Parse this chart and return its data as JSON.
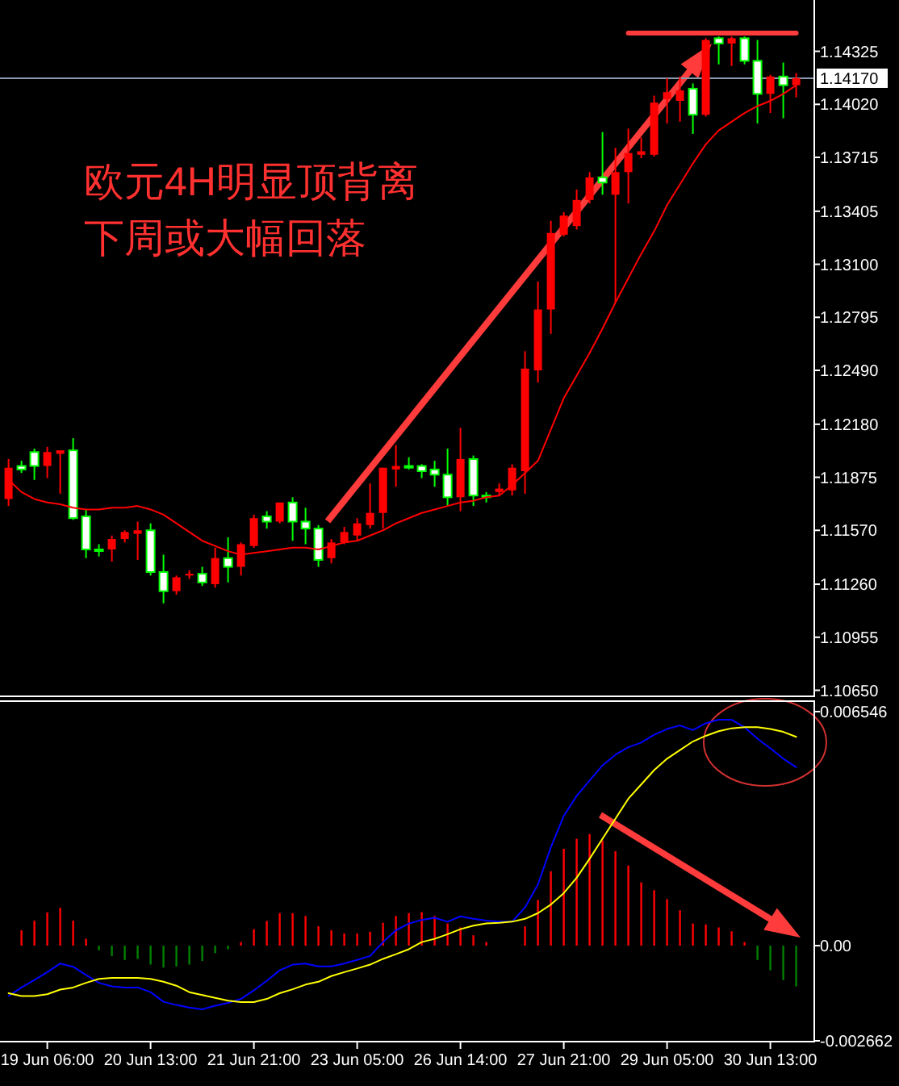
{
  "chart_data": [
    {
      "type": "candlestick",
      "tick_labels": "y",
      "categories": [
        null,
        null,
        null,
        null,
        null,
        null,
        null,
        null,
        null,
        null,
        null,
        null,
        null,
        null,
        null,
        null,
        null,
        null,
        null,
        null,
        null,
        null,
        null,
        null,
        null,
        null,
        null,
        null,
        null,
        null,
        null,
        null,
        null,
        null,
        null,
        null,
        null,
        null,
        null,
        null,
        null,
        null,
        null,
        null,
        null,
        null,
        null,
        null,
        null,
        null,
        null,
        null,
        null,
        null,
        null,
        null,
        null,
        null,
        null,
        null,
        null,
        null
      ],
      "ohlc": [
        [
          1.1175,
          1.1198,
          1.1171,
          1.1193
        ],
        [
          1.1194,
          1.1197,
          1.119,
          1.1192
        ],
        [
          1.1202,
          1.1204,
          1.1186,
          1.1194
        ],
        [
          1.1194,
          1.1205,
          1.1187,
          1.1202
        ],
        [
          1.1201,
          1.1203,
          1.1178,
          1.1203
        ],
        [
          1.1203,
          1.121,
          1.1163,
          1.1164
        ],
        [
          1.1165,
          1.1169,
          1.1141,
          1.1146
        ],
        [
          1.1146,
          1.1149,
          1.1142,
          1.1146
        ],
        [
          1.1146,
          1.1154,
          1.1139,
          1.1152
        ],
        [
          1.1152,
          1.1157,
          1.115,
          1.1156
        ],
        [
          1.1155,
          1.1162,
          1.114,
          1.1157
        ],
        [
          1.1157,
          1.1161,
          1.1131,
          1.1133
        ],
        [
          1.1133,
          1.1143,
          1.1115,
          1.1122
        ],
        [
          1.1122,
          1.1131,
          1.112,
          1.113
        ],
        [
          1.1131,
          1.1134,
          1.1129,
          1.1132
        ],
        [
          1.1132,
          1.1136,
          1.1125,
          1.1127
        ],
        [
          1.1126,
          1.1147,
          1.1124,
          1.1141
        ],
        [
          1.1141,
          1.1153,
          1.1127,
          1.1136
        ],
        [
          1.1136,
          1.115,
          1.1131,
          1.1149
        ],
        [
          1.1148,
          1.1166,
          1.1147,
          1.1164
        ],
        [
          1.1165,
          1.1168,
          1.1158,
          1.1162
        ],
        [
          1.1162,
          1.1173,
          1.1161,
          1.1173
        ],
        [
          1.1173,
          1.1176,
          1.1151,
          1.1162
        ],
        [
          1.1162,
          1.117,
          1.1149,
          1.1158
        ],
        [
          1.1158,
          1.116,
          1.1136,
          1.114
        ],
        [
          1.1141,
          1.1152,
          1.1138,
          1.115
        ],
        [
          1.115,
          1.1159,
          1.1149,
          1.1156
        ],
        [
          1.1154,
          1.1164,
          1.1151,
          1.1161
        ],
        [
          1.116,
          1.1184,
          1.1158,
          1.1167
        ],
        [
          1.1167,
          1.1193,
          1.1158,
          1.1193
        ],
        [
          1.1192,
          1.1206,
          1.1182,
          1.1194
        ],
        [
          1.1194,
          1.1199,
          1.1192,
          1.1193
        ],
        [
          1.1194,
          1.1195,
          1.1187,
          1.1191
        ],
        [
          1.1192,
          1.1197,
          1.1182,
          1.1189
        ],
        [
          1.1189,
          1.1204,
          1.1171,
          1.1176
        ],
        [
          1.1176,
          1.1216,
          1.1168,
          1.1198
        ],
        [
          1.1198,
          1.12,
          1.1171,
          1.1177
        ],
        [
          1.1177,
          1.1179,
          1.1173,
          1.1176
        ],
        [
          1.1179,
          1.1184,
          1.1177,
          1.1181
        ],
        [
          1.118,
          1.1195,
          1.1177,
          1.1193
        ],
        [
          1.1191,
          1.126,
          1.1178,
          1.125
        ],
        [
          1.1249,
          1.13,
          1.1242,
          1.1284
        ],
        [
          1.1284,
          1.1335,
          1.127,
          1.1328
        ],
        [
          1.1327,
          1.134,
          1.1326,
          1.1338
        ],
        [
          1.1332,
          1.1353,
          1.133,
          1.1347
        ],
        [
          1.1347,
          1.1363,
          1.1345,
          1.136
        ],
        [
          1.136,
          1.1386,
          1.135,
          1.1357
        ],
        [
          1.135,
          1.1377,
          1.1288,
          1.1363
        ],
        [
          1.1363,
          1.1388,
          1.1345,
          1.1374
        ],
        [
          1.1373,
          1.1383,
          1.1371,
          1.1375
        ],
        [
          1.1373,
          1.1407,
          1.1372,
          1.1403
        ],
        [
          1.1405,
          1.1417,
          1.1391,
          1.1409
        ],
        [
          1.1404,
          1.1418,
          1.1392,
          1.141
        ],
        [
          1.1411,
          1.1414,
          1.1385,
          1.1396
        ],
        [
          1.1396,
          1.144,
          1.1395,
          1.1439
        ],
        [
          1.144,
          1.1441,
          1.1425,
          1.1437
        ],
        [
          1.1437,
          1.1441,
          1.1424,
          1.144
        ],
        [
          1.144,
          1.1441,
          1.1425,
          1.1427
        ],
        [
          1.1427,
          1.1439,
          1.1391,
          1.1408
        ],
        [
          1.1408,
          1.1419,
          1.1397,
          1.1418
        ],
        [
          1.1418,
          1.1426,
          1.1394,
          1.1413
        ],
        [
          1.1413,
          1.142,
          1.1406,
          1.1417
        ]
      ],
      "series": [
        {
          "type": "line",
          "color": "#ff0000",
          "values": [
            1.1186,
            1.1179,
            1.1175,
            1.1173,
            1.1172,
            1.117,
            1.1169,
            1.1169,
            1.117,
            1.117,
            1.1171,
            1.1169,
            1.1166,
            1.1161,
            1.1156,
            1.1151,
            1.1148,
            1.1145,
            1.1143,
            1.1144,
            1.1145,
            1.1146,
            1.1147,
            1.1147,
            1.1146,
            1.1148,
            1.115,
            1.1151,
            1.1154,
            1.1157,
            1.1161,
            1.1164,
            1.1167,
            1.1169,
            1.1171,
            1.1173,
            1.1174,
            1.1176,
            1.1177,
            1.1183,
            1.119,
            1.1197,
            1.1215,
            1.1233,
            1.1246,
            1.1259,
            1.1273,
            1.1288,
            1.1302,
            1.1316,
            1.1329,
            1.1344,
            1.1356,
            1.1368,
            1.1379,
            1.1387,
            1.1392,
            1.1397,
            1.1401,
            1.1404,
            1.1408,
            1.1413
          ]
        },
        {
          "type": "line",
          "color": "#ff3b3b",
          "values": [
            null,
            null,
            null,
            null,
            null,
            null,
            null,
            null,
            null,
            null,
            null,
            null,
            null,
            null,
            null,
            null,
            null,
            null,
            null,
            null,
            null,
            null,
            null,
            null,
            null,
            null,
            null,
            null,
            null,
            null,
            null,
            null,
            null,
            null,
            null,
            null,
            null,
            null,
            null,
            null,
            null,
            null,
            null,
            null,
            null,
            null,
            null,
            null,
            1.1443,
            1.1443,
            1.1443,
            1.1443,
            1.1443,
            1.1443,
            1.1443,
            1.1443,
            1.1443,
            1.1443,
            1.1443,
            1.1443,
            1.1443,
            1.1443
          ]
        }
      ],
      "ylim": [
        1.1062,
        1.1462
      ],
      "yticks": [
        1.14325,
        {
          "value": 1.1402,
          "label": "1.14020"
        },
        1.13715,
        1.13405,
        {
          "value": 1.131,
          "label": "1.13100"
        },
        1.12795,
        {
          "value": 1.1249,
          "label": "1.12490"
        },
        {
          "value": 1.1218,
          "label": "1.12180"
        },
        1.11875,
        {
          "value": 1.1157,
          "label": "1.11570"
        },
        {
          "value": 1.1126,
          "label": "1.11260"
        },
        1.10955,
        {
          "value": 1.1065,
          "label": "1.10650"
        }
      ],
      "ref_lines": [
        {
          "axis": "y",
          "value": 1.1417,
          "label": "1.14170",
          "color": "#8a9ab0"
        }
      ],
      "annotations": [
        "欧元4H明显顶背离",
        "下周或大幅回落"
      ]
    },
    {
      "type": "bar",
      "categories": [
        null,
        null,
        null,
        "19 Jun 06:00",
        null,
        null,
        null,
        null,
        null,
        null,
        null,
        "20 Jun 13:00",
        null,
        null,
        null,
        null,
        null,
        null,
        null,
        "21 Jun 21:00",
        null,
        null,
        null,
        null,
        null,
        null,
        null,
        "23 Jun 05:00",
        null,
        null,
        null,
        null,
        null,
        null,
        null,
        "26 Jun 14:00",
        null,
        null,
        null,
        null,
        null,
        null,
        null,
        "27 Jun 21:00",
        null,
        null,
        null,
        null,
        null,
        null,
        null,
        "29 Jun 05:00",
        null,
        null,
        null,
        null,
        null,
        null,
        null,
        "30 Jun 13:00",
        null,
        null
      ],
      "series": [
        {
          "values": [
            null,
            0.00043,
            0.0007,
            0.00093,
            0.00106,
            0.0007,
            0.00019,
            -0.00013,
            -0.00029,
            -0.0004,
            -0.00037,
            -0.00053,
            -0.00061,
            -0.00058,
            -0.00053,
            -0.00043,
            -0.00021,
            -0.0001,
            0.0001,
            0.00046,
            0.00069,
            0.00091,
            0.00091,
            0.00083,
            0.00054,
            0.00043,
            0.00034,
            0.00034,
            0.00039,
            0.00064,
            0.00083,
            0.00091,
            0.00094,
            0.00083,
            0.00062,
            0.00051,
            0.00029,
            0.0001,
            0,
            0,
            0.00054,
            0.00128,
            0.00208,
            0.00271,
            0.00299,
            0.00312,
            0.00294,
            0.00264,
            0.00224,
            0.00177,
            0.00155,
            0.0013,
            0.00099,
            0.00062,
            0.00059,
            0.00051,
            0.0004,
            0.0001,
            -0.0004,
            -0.00069,
            -0.00096,
            -0.00114
          ],
          "colors": [
            null,
            "#ff0000",
            "#ff0000",
            "#ff0000",
            "#ff0000",
            "#ff0000",
            "#ff0000",
            "#008000",
            "#008000",
            "#008000",
            "#008000",
            "#008000",
            "#008000",
            "#008000",
            "#008000",
            "#008000",
            "#008000",
            "#008000",
            "#ff0000",
            "#ff0000",
            "#ff0000",
            "#ff0000",
            "#ff0000",
            "#ff0000",
            "#ff0000",
            "#ff0000",
            "#ff0000",
            "#ff0000",
            "#ff0000",
            "#ff0000",
            "#ff0000",
            "#ff0000",
            "#ff0000",
            "#ff0000",
            "#ff0000",
            "#ff0000",
            "#ff0000",
            "#ff0000",
            "#008000",
            "#ff0000",
            "#ff0000",
            "#ff0000",
            "#ff0000",
            "#ff0000",
            "#ff0000",
            "#ff0000",
            "#ff0000",
            "#ff0000",
            "#ff0000",
            "#ff0000",
            "#ff0000",
            "#ff0000",
            "#ff0000",
            "#ff0000",
            "#ff0000",
            "#ff0000",
            "#ff0000",
            "#ff0000",
            "#008000",
            "#008000",
            "#008000",
            "#008000"
          ]
        },
        {
          "type": "line",
          "color": "#0000ff",
          "values": [
            -0.00141,
            -0.00117,
            -0.00096,
            -0.00074,
            -0.0005,
            -0.00059,
            -0.00082,
            -0.00104,
            -0.00114,
            -0.00117,
            -0.00117,
            -0.0013,
            -0.00157,
            -0.00166,
            -0.00173,
            -0.00178,
            -0.00168,
            -0.0016,
            -0.00149,
            -0.00125,
            -0.00098,
            -0.00069,
            -0.00053,
            -0.0005,
            -0.00058,
            -0.00058,
            -0.0005,
            -0.0004,
            -0.00029,
            0.0001,
            0.00043,
            0.00062,
            0.00072,
            0.00078,
            0.00067,
            0.00082,
            0.00075,
            0.0007,
            0.00067,
            0.00067,
            0.00107,
            0.00171,
            0.00275,
            0.00363,
            0.00419,
            0.00462,
            0.00504,
            0.00534,
            0.00555,
            0.00568,
            0.0059,
            0.00606,
            0.00616,
            0.00603,
            0.00622,
            0.00632,
            0.00632,
            0.00611,
            0.00579,
            0.00552,
            0.00523,
            0.00499
          ]
        },
        {
          "type": "line",
          "color": "#ffff00",
          "values": [
            -0.00133,
            -0.00141,
            -0.00141,
            -0.00136,
            -0.00123,
            -0.00117,
            -0.00104,
            -0.00093,
            -0.0009,
            -0.0009,
            -0.0009,
            -0.00093,
            -0.00101,
            -0.00112,
            -0.0013,
            -0.00138,
            -0.00146,
            -0.00154,
            -0.00158,
            -0.00158,
            -0.00149,
            -0.00133,
            -0.00122,
            -0.00109,
            -0.00101,
            -0.00085,
            -0.00074,
            -0.00064,
            -0.00053,
            -0.00037,
            -0.00024,
            -0.0001,
            0.0001,
            0.00019,
            0.00032,
            0.00046,
            0.00056,
            0.00062,
            0.00064,
            0.00067,
            0.00075,
            0.00091,
            0.00115,
            0.00147,
            0.0019,
            0.00243,
            0.00299,
            0.00355,
            0.00411,
            0.00451,
            0.00491,
            0.00523,
            0.00547,
            0.00571,
            0.00587,
            0.006,
            0.00608,
            0.00611,
            0.00611,
            0.00606,
            0.00598,
            0.00584
          ]
        }
      ],
      "ylim": [
        -0.002662,
        0.006546
      ],
      "yticks": [
        0.006546,
        {
          "value": 0,
          "label": "0.00"
        },
        -0.002662
      ]
    }
  ]
}
